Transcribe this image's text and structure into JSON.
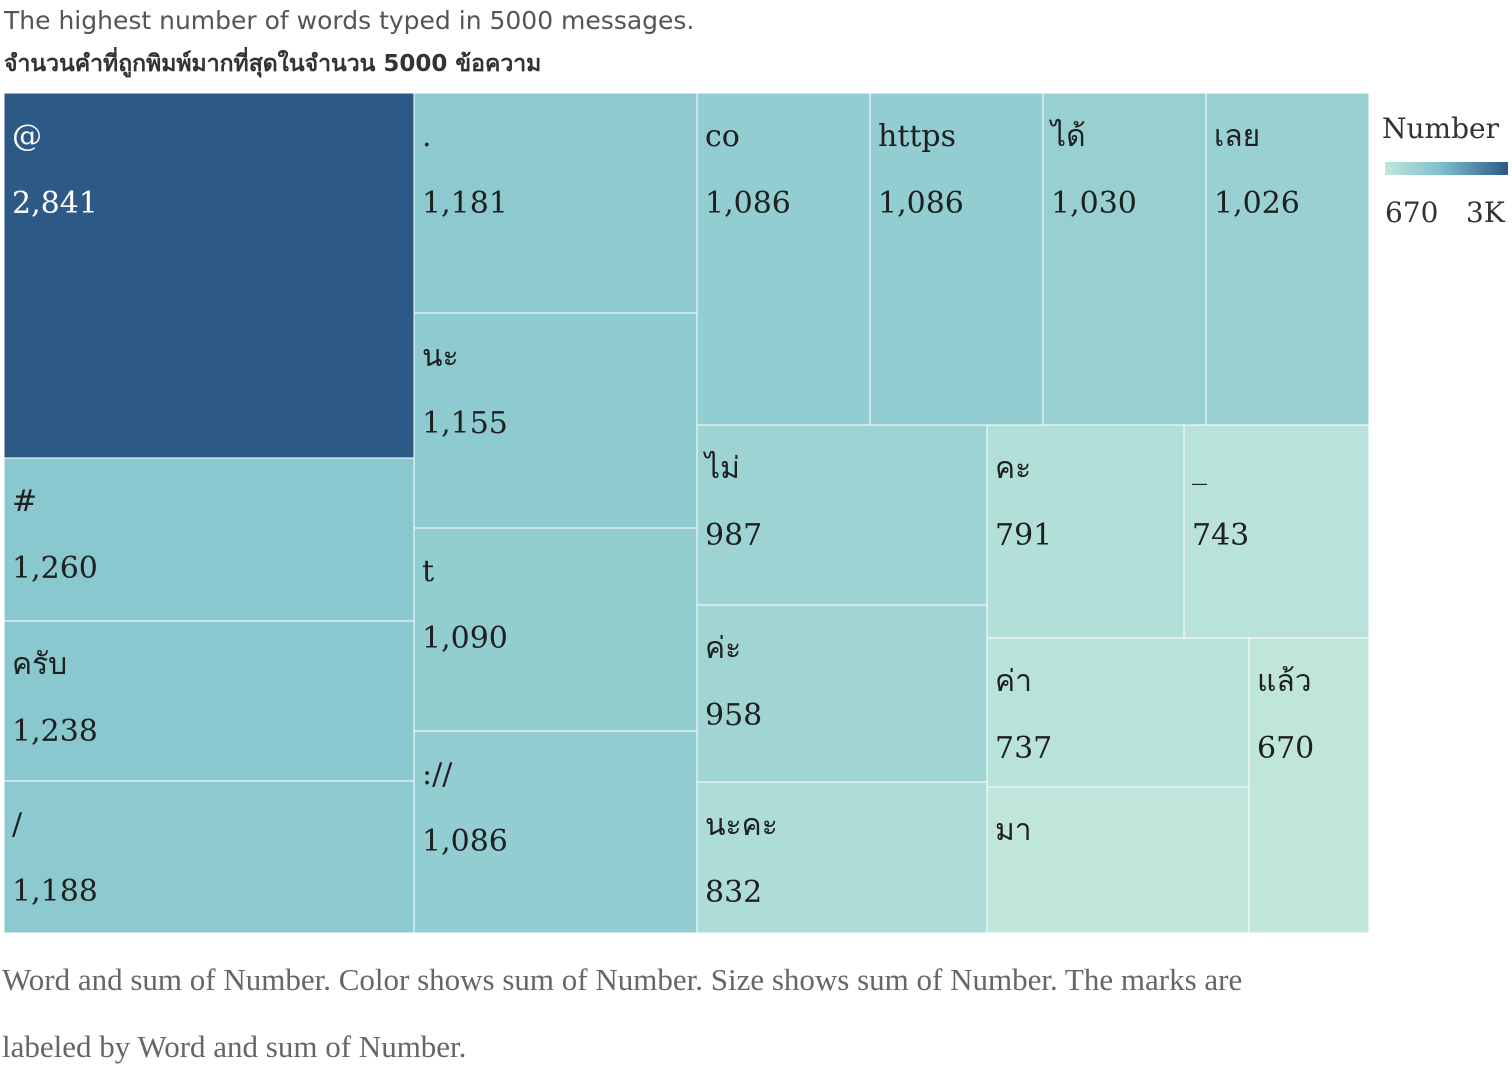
{
  "header": {
    "title": "The highest number of words typed in 5000 messages.",
    "subtitle": "จำนวนคำที่ถูกพิมพ์มากที่สุดในจำนวน 5000 ข้อความ"
  },
  "legend": {
    "title": "Number",
    "min_label": "670",
    "max_label": "3K",
    "color_low": "#c0e6dc",
    "color_high": "#2d5986"
  },
  "footnote": {
    "line1": "Word and sum of Number.  Color shows sum of Number.  Size shows sum of Number.  The marks are",
    "line2": "labeled by Word and sum of Number."
  },
  "chart_data": {
    "type": "treemap",
    "size_measure": "Number",
    "color_measure": "Number",
    "color_range": [
      670,
      2841
    ],
    "items": [
      {
        "word": "@",
        "value": 2841,
        "value_label": "2,841"
      },
      {
        "word": "#",
        "value": 1260,
        "value_label": "1,260"
      },
      {
        "word": "ครับ",
        "value": 1238,
        "value_label": "1,238"
      },
      {
        "word": "/",
        "value": 1188,
        "value_label": "1,188"
      },
      {
        "word": ".",
        "value": 1181,
        "value_label": "1,181"
      },
      {
        "word": "นะ",
        "value": 1155,
        "value_label": "1,155"
      },
      {
        "word": "t",
        "value": 1090,
        "value_label": "1,090"
      },
      {
        "word": "://",
        "value": 1086,
        "value_label": "1,086"
      },
      {
        "word": "co",
        "value": 1086,
        "value_label": "1,086"
      },
      {
        "word": "https",
        "value": 1086,
        "value_label": "1,086"
      },
      {
        "word": "ได้",
        "value": 1030,
        "value_label": "1,030"
      },
      {
        "word": "เลย",
        "value": 1026,
        "value_label": "1,026"
      },
      {
        "word": "ไม่",
        "value": 987,
        "value_label": "987"
      },
      {
        "word": "ค่ะ",
        "value": 958,
        "value_label": "958"
      },
      {
        "word": "นะคะ",
        "value": 832,
        "value_label": "832"
      },
      {
        "word": "คะ",
        "value": 791,
        "value_label": "791"
      },
      {
        "word": "_",
        "value": 743,
        "value_label": "743"
      },
      {
        "word": "ค่า",
        "value": 737,
        "value_label": "737"
      },
      {
        "word": "แล้ว",
        "value": 670,
        "value_label": "670"
      },
      {
        "word": "มา",
        "value": null,
        "value_label": ""
      }
    ]
  }
}
